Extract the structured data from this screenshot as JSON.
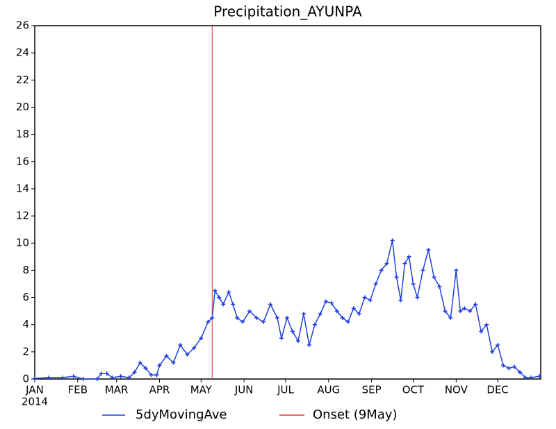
{
  "chart_data": {
    "type": "line",
    "title": "Precipitation_AYUNPA",
    "year_label": "2014",
    "xlim": [
      0,
      365
    ],
    "xticks": [
      {
        "value": 0,
        "label": "JAN"
      },
      {
        "value": 31,
        "label": "FEB"
      },
      {
        "value": 59,
        "label": "MAR"
      },
      {
        "value": 90,
        "label": "APR"
      },
      {
        "value": 120,
        "label": "MAY"
      },
      {
        "value": 151,
        "label": "JUN"
      },
      {
        "value": 181,
        "label": "JUL"
      },
      {
        "value": 212,
        "label": "AUG"
      },
      {
        "value": 243,
        "label": "SEP"
      },
      {
        "value": 273,
        "label": "OCT"
      },
      {
        "value": 304,
        "label": "NOV"
      },
      {
        "value": 334,
        "label": "DEC"
      }
    ],
    "ylim": [
      0,
      26
    ],
    "yticks": [
      0,
      2,
      4,
      6,
      8,
      10,
      12,
      14,
      16,
      18,
      20,
      22,
      24,
      26
    ],
    "x": [
      0,
      10,
      20,
      28,
      35,
      45,
      48,
      52,
      56,
      62,
      68,
      72,
      76,
      80,
      84,
      88,
      90,
      95,
      100,
      105,
      110,
      115,
      120,
      125,
      128,
      130,
      133,
      136,
      140,
      143,
      146,
      150,
      155,
      160,
      165,
      170,
      175,
      178,
      182,
      186,
      190,
      194,
      198,
      202,
      206,
      210,
      214,
      218,
      222,
      226,
      230,
      234,
      238,
      242,
      246,
      250,
      254,
      258,
      261,
      264,
      267,
      270,
      273,
      276,
      280,
      284,
      288,
      292,
      296,
      300,
      304,
      307,
      310,
      314,
      318,
      322,
      326,
      330,
      334,
      338,
      342,
      346,
      350,
      354,
      358,
      364
    ],
    "series": [
      {
        "name": "5dyMovingAve",
        "color": "#1f3fdf",
        "values": [
          0.05,
          0.1,
          0.1,
          0.2,
          0,
          0,
          0.4,
          0.4,
          0.1,
          0.2,
          0.1,
          0.5,
          1.2,
          0.8,
          0.3,
          0.3,
          1.0,
          1.7,
          1.2,
          2.5,
          1.8,
          2.3,
          3.0,
          4.2,
          4.5,
          6.5,
          6.0,
          5.5,
          6.4,
          5.5,
          4.5,
          4.2,
          5.0,
          4.5,
          4.2,
          5.5,
          4.5,
          3.0,
          4.5,
          3.5,
          2.8,
          4.8,
          2.5,
          4.0,
          4.8,
          5.7,
          5.6,
          5.0,
          4.5,
          4.2,
          5.2,
          4.8,
          6.0,
          5.8,
          7.0,
          8.0,
          8.5,
          10.2,
          7.5,
          5.8,
          8.5,
          9.0,
          7.0,
          6.0,
          8.0,
          9.5,
          7.5,
          6.8,
          5.0,
          4.5,
          8.0,
          5.0,
          5.2,
          5.0,
          5.5,
          3.5,
          4.0,
          2.0,
          2.5,
          1.0,
          0.8,
          0.9,
          0.5,
          0.1,
          0.1,
          0.2
        ]
      }
    ],
    "onset": {
      "name": "Onset (9May)",
      "color": "#e8302e",
      "x": 128
    }
  }
}
